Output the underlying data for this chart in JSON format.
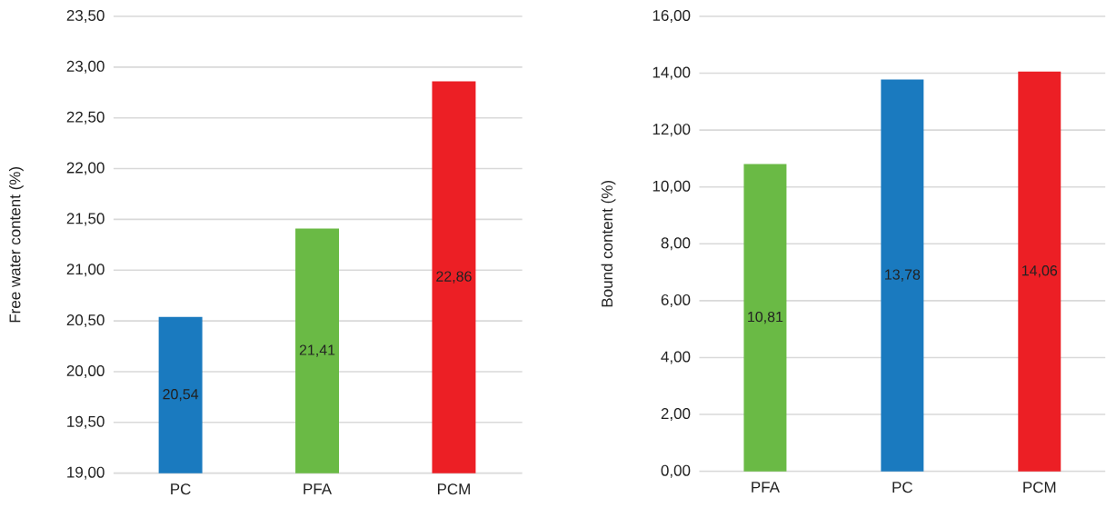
{
  "chart_data": [
    {
      "type": "bar",
      "ylabel": "Free water content (%)",
      "categories": [
        "PC",
        "PFA",
        "PCM"
      ],
      "values": [
        20.54,
        21.41,
        22.86
      ],
      "colors": [
        "#1a7abf",
        "#6aba45",
        "#ec1f25"
      ],
      "value_labels": [
        "20,54",
        "21,41",
        "22,86"
      ],
      "ylim": [
        19,
        23.5
      ],
      "yticks": [
        {
          "value": 19,
          "label": "19,00"
        },
        {
          "value": 19.5,
          "label": "19,50"
        },
        {
          "value": 20,
          "label": "20,00"
        },
        {
          "value": 20.5,
          "label": "20,50"
        },
        {
          "value": 21,
          "label": "21,00"
        },
        {
          "value": 21.5,
          "label": "21,50"
        },
        {
          "value": 22,
          "label": "22,00"
        },
        {
          "value": 22.5,
          "label": "22,50"
        },
        {
          "value": 23,
          "label": "23,00"
        },
        {
          "value": 23.5,
          "label": "23,50"
        }
      ],
      "grid": "y"
    },
    {
      "type": "bar",
      "ylabel": "Bound content (%)",
      "categories": [
        "PFA",
        "PC",
        "PCM"
      ],
      "values": [
        10.81,
        13.78,
        14.06
      ],
      "colors": [
        "#6aba45",
        "#1a7abf",
        "#ec1f25"
      ],
      "value_labels": [
        "10,81",
        "13,78",
        "14,06"
      ],
      "ylim": [
        0,
        16
      ],
      "yticks": [
        {
          "value": 0,
          "label": "0,00"
        },
        {
          "value": 2,
          "label": "2,00"
        },
        {
          "value": 4,
          "label": "4,00"
        },
        {
          "value": 6,
          "label": "6,00"
        },
        {
          "value": 8,
          "label": "8,00"
        },
        {
          "value": 10,
          "label": "10,00"
        },
        {
          "value": 12,
          "label": "12,00"
        },
        {
          "value": 14,
          "label": "14,00"
        },
        {
          "value": 16,
          "label": "16,00"
        }
      ],
      "grid": "y"
    }
  ]
}
